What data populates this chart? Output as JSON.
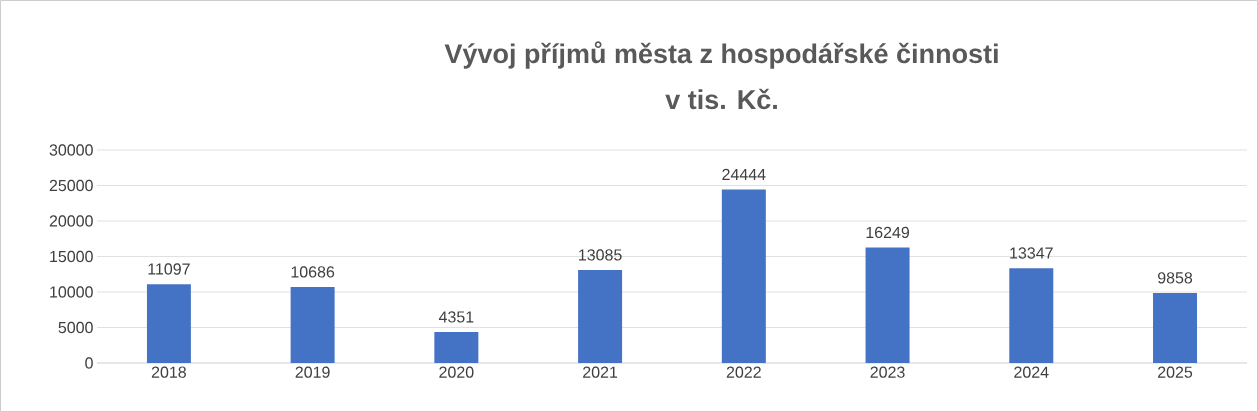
{
  "chart_data": {
    "type": "bar",
    "title": "Vývoj příjmů města z hospodářské činnosti",
    "subtitle": "v tis. Kč.",
    "categories": [
      "2018",
      "2019",
      "2020",
      "2021",
      "2022",
      "2023",
      "2024",
      "2025"
    ],
    "values": [
      11097,
      10686,
      4351,
      13085,
      24444,
      16249,
      13347,
      9858
    ],
    "color": "#4472c4",
    "ylim": [
      0,
      30000
    ],
    "yticks": [
      0,
      5000,
      10000,
      15000,
      20000,
      25000,
      30000
    ],
    "grid": "y",
    "data_labels": true
  }
}
